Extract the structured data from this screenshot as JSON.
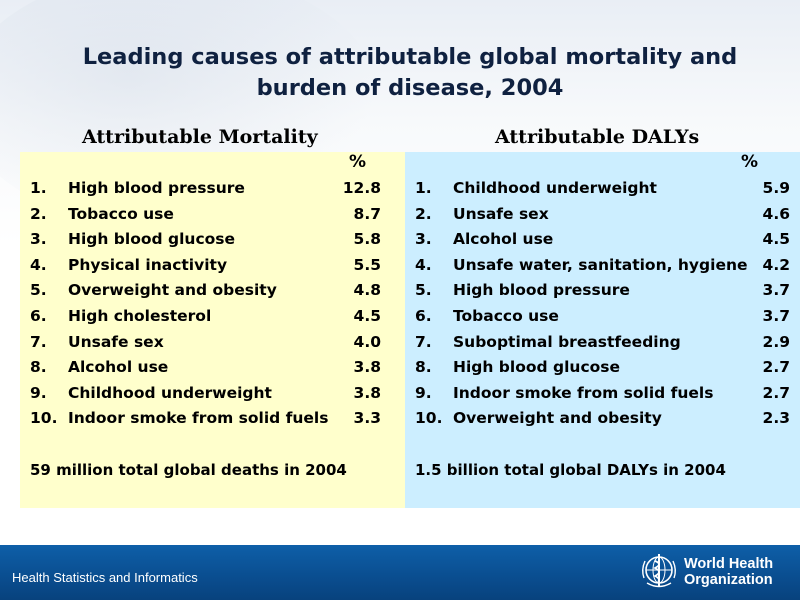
{
  "title_line1": "Leading causes of attributable global mortality and",
  "title_line2": "burden of disease, 2004",
  "left": {
    "heading": "Attributable Mortality",
    "pct_label": "%",
    "items": [
      {
        "num": "1.",
        "label": "High blood pressure",
        "value": "12.8"
      },
      {
        "num": "2.",
        "label": "Tobacco use",
        "value": "8.7"
      },
      {
        "num": "3.",
        "label": "High blood glucose",
        "value": "5.8"
      },
      {
        "num": "4.",
        "label": "Physical inactivity",
        "value": "5.5"
      },
      {
        "num": "5.",
        "label": "Overweight and obesity",
        "value": "4.8"
      },
      {
        "num": "6.",
        "label": "High cholesterol",
        "value": "4.5"
      },
      {
        "num": "7.",
        "label": "Unsafe sex",
        "value": "4.0"
      },
      {
        "num": "8.",
        "label": "Alcohol use",
        "value": "3.8"
      },
      {
        "num": "9.",
        "label": "Childhood underweight",
        "value": "3.8"
      },
      {
        "num": "10.",
        "label": "Indoor smoke from solid fuels",
        "value": "3.3"
      }
    ],
    "total": "59 million total global deaths in 2004"
  },
  "right": {
    "heading": "Attributable DALYs",
    "pct_label": "%",
    "items": [
      {
        "num": "1.",
        "label": "Childhood underweight",
        "value": "5.9"
      },
      {
        "num": "2.",
        "label": "Unsafe sex",
        "value": "4.6"
      },
      {
        "num": "3.",
        "label": "Alcohol use",
        "value": "4.5"
      },
      {
        "num": "4.",
        "label": "Unsafe water, sanitation, hygiene",
        "value": "4.2"
      },
      {
        "num": "5.",
        "label": "High blood pressure",
        "value": "3.7"
      },
      {
        "num": "6.",
        "label": "Tobacco use",
        "value": "3.7"
      },
      {
        "num": "7.",
        "label": "Suboptimal breastfeeding",
        "value": "2.9"
      },
      {
        "num": "8.",
        "label": "High blood glucose",
        "value": "2.7"
      },
      {
        "num": "9.",
        "label": "Indoor smoke from solid fuels",
        "value": "2.7"
      },
      {
        "num": "10.",
        "label": "Overweight and obesity",
        "value": "2.3"
      }
    ],
    "total": "1.5 billion total global DALYs in 2004"
  },
  "footer": {
    "left_text": "Health Statistics and Informatics",
    "org_line1": "World Health",
    "org_line2": "Organization",
    "bar_color": "#0a4d8f"
  }
}
